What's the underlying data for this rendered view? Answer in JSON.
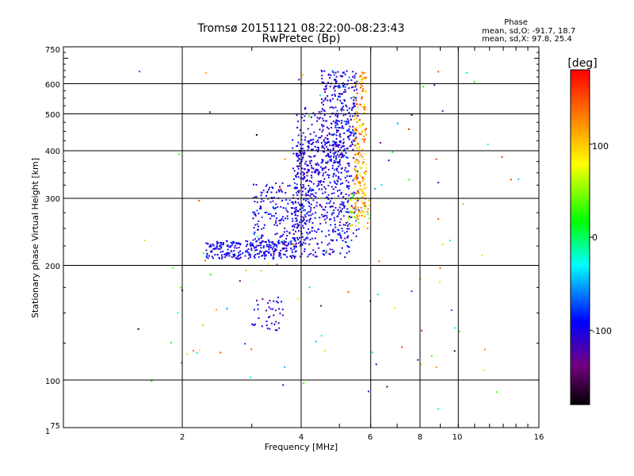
{
  "chart_data": {
    "type": "scatter",
    "title": "Tromsø 20151121 08:22:00-08:23:43",
    "subtitle": "RwPretec (Bp)",
    "xlabel": "Frequency [MHz]",
    "ylabel": "Stationary phase Virtual Height [km]",
    "x_scale": "log",
    "y_scale": "log",
    "xlim": [
      1,
      16
    ],
    "ylim": [
      75,
      750
    ],
    "x_ticks": [
      "1",
      "2",
      "4",
      "6",
      "8",
      "10",
      "16"
    ],
    "y_ticks": [
      "75",
      "100",
      "200",
      "300",
      "400",
      "500",
      "600",
      "750"
    ],
    "grid": true,
    "stats": {
      "heading": "Phase",
      "line_o": "mean, sd,O: -91.7, 18.7",
      "line_x": "mean, sd,X: 97.8, 25.4"
    },
    "colorbar": {
      "label": "[deg]",
      "ticks": [
        "100",
        "0",
        "-100"
      ],
      "range": [
        -180,
        180
      ]
    },
    "clusters": [
      {
        "f0": 2.3,
        "f1": 3.9,
        "h0": 208,
        "h1": 232,
        "count": 260,
        "phase": [
          -120,
          -80
        ],
        "curve": 0
      },
      {
        "f0": 3.0,
        "f1": 4.3,
        "h0": 225,
        "h1": 330,
        "count": 230,
        "phase": [
          -120,
          -70
        ],
        "curve": 0
      },
      {
        "f0": 3.8,
        "f1": 5.3,
        "h0": 210,
        "h1": 430,
        "count": 420,
        "phase": [
          -120,
          -80
        ],
        "curve": 0
      },
      {
        "f0": 3.9,
        "f1": 5.0,
        "h0": 330,
        "h1": 520,
        "count": 150,
        "phase": [
          -120,
          -90
        ],
        "curve": 0
      },
      {
        "f0": 4.5,
        "f1": 5.5,
        "h0": 400,
        "h1": 650,
        "count": 190,
        "phase": [
          -120,
          -90
        ],
        "curve": 0
      },
      {
        "f0": 4.8,
        "f1": 5.6,
        "h0": 230,
        "h1": 650,
        "count": 160,
        "phase": [
          -120,
          -60
        ],
        "curve": 0
      },
      {
        "f0": 5.45,
        "f1": 5.85,
        "h0": 260,
        "h1": 650,
        "count": 200,
        "phase": [
          70,
          160
        ],
        "curve": 0
      },
      {
        "f0": 5.2,
        "f1": 6.0,
        "h0": 250,
        "h1": 310,
        "count": 50,
        "phase": [
          30,
          150
        ],
        "curve": 0
      },
      {
        "f0": 3.0,
        "f1": 3.6,
        "h0": 135,
        "h1": 165,
        "count": 40,
        "phase": [
          -130,
          -80
        ],
        "curve": 0
      },
      {
        "f0": 1.5,
        "f1": 12.0,
        "h0": 90,
        "h1": 660,
        "count": 80,
        "phase": [
          -180,
          180
        ],
        "curve": 0
      }
    ],
    "isolated_points": [
      {
        "x": 2.35,
        "y": 505,
        "phase": -140
      },
      {
        "x": 2.3,
        "y": 640,
        "phase": 110
      },
      {
        "x": 3.95,
        "y": 615,
        "phase": -110
      },
      {
        "x": 4.0,
        "y": 600,
        "phase": -115
      },
      {
        "x": 8.7,
        "y": 595,
        "phase": -120
      },
      {
        "x": 8.9,
        "y": 645,
        "phase": 150
      },
      {
        "x": 8.8,
        "y": 380,
        "phase": 160
      },
      {
        "x": 8.9,
        "y": 330,
        "phase": -110
      },
      {
        "x": 8.9,
        "y": 265,
        "phase": 140
      },
      {
        "x": 9.0,
        "y": 197,
        "phase": 150
      },
      {
        "x": 8.8,
        "y": 108,
        "phase": 120
      },
      {
        "x": 8.9,
        "y": 84,
        "phase": -20
      },
      {
        "x": 7.9,
        "y": 113,
        "phase": -130
      },
      {
        "x": 7.2,
        "y": 122,
        "phase": 160
      },
      {
        "x": 6.6,
        "y": 96,
        "phase": -160
      },
      {
        "x": 6.2,
        "y": 110,
        "phase": -110
      },
      {
        "x": 10.3,
        "y": 290,
        "phase": 110
      },
      {
        "x": 12.5,
        "y": 93,
        "phase": 30
      },
      {
        "x": 12.9,
        "y": 385,
        "phase": 160
      },
      {
        "x": 13.6,
        "y": 336,
        "phase": 150
      },
      {
        "x": 14.2,
        "y": 337,
        "phase": -40
      },
      {
        "x": 3.6,
        "y": 97,
        "phase": -110
      },
      {
        "x": 2.5,
        "y": 118,
        "phase": 150
      },
      {
        "x": 1.95,
        "y": 150,
        "phase": -20
      },
      {
        "x": 2.0,
        "y": 172,
        "phase": -100
      },
      {
        "x": 2.8,
        "y": 182,
        "phase": -140
      },
      {
        "x": 6.9,
        "y": 155,
        "phase": 90
      },
      {
        "x": 9.8,
        "y": 137,
        "phase": -30
      },
      {
        "x": 6.3,
        "y": 205,
        "phase": 140
      },
      {
        "x": 6.35,
        "y": 420,
        "phase": -140
      }
    ]
  }
}
